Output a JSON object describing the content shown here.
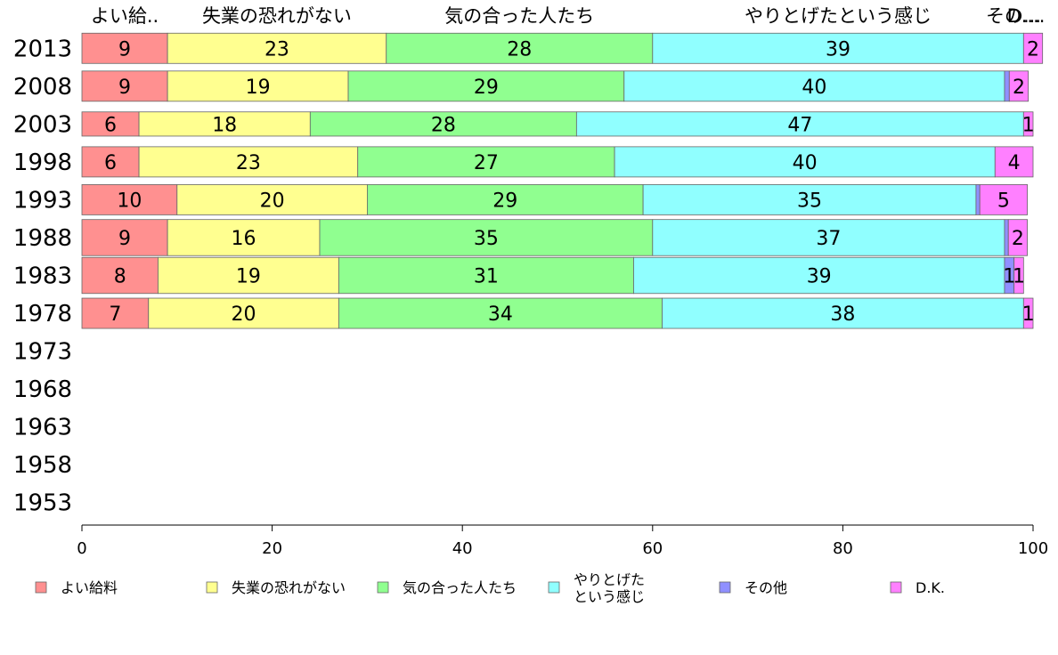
{
  "chart_data": {
    "type": "bar",
    "orientation": "horizontal",
    "stacked": true,
    "categories": [
      "2013",
      "2008",
      "2003",
      "1998",
      "1993",
      "1988",
      "1983",
      "1978",
      "1973",
      "1968",
      "1963",
      "1958",
      "1953"
    ],
    "series": [
      {
        "name": "よい給料",
        "header": "よい給..",
        "color": "#ff9090",
        "values": [
          9,
          9,
          6,
          6,
          10,
          9,
          8,
          7,
          null,
          null,
          null,
          null,
          null
        ],
        "labels": [
          "9",
          "9",
          "6",
          "6",
          "10",
          "9",
          "8",
          "7",
          "",
          "",
          "",
          "",
          ""
        ]
      },
      {
        "name": "失業の恐れがない",
        "header": "失業の恐れがない",
        "color": "#ffff90",
        "values": [
          23,
          19,
          18,
          23,
          20,
          16,
          19,
          20,
          null,
          null,
          null,
          null,
          null
        ],
        "labels": [
          "23",
          "19",
          "18",
          "23",
          "20",
          "16",
          "19",
          "20",
          "",
          "",
          "",
          "",
          ""
        ]
      },
      {
        "name": "気の合った人たち",
        "header": "気の合った人たち",
        "color": "#90ff90",
        "values": [
          28,
          29,
          28,
          27,
          29,
          35,
          31,
          34,
          null,
          null,
          null,
          null,
          null
        ],
        "labels": [
          "28",
          "29",
          "28",
          "27",
          "29",
          "35",
          "31",
          "34",
          "",
          "",
          "",
          "",
          ""
        ]
      },
      {
        "name": "やりとげたという感じ",
        "header": "やりとげたという感じ",
        "legend_lines": [
          "やりとげた",
          "という感じ"
        ],
        "color": "#90ffff",
        "values": [
          39,
          40,
          47,
          40,
          35,
          37,
          39,
          38,
          null,
          null,
          null,
          null,
          null
        ],
        "labels": [
          "39",
          "40",
          "47",
          "40",
          "35",
          "37",
          "39",
          "38",
          "",
          "",
          "",
          "",
          ""
        ]
      },
      {
        "name": "その他",
        "header": "その...",
        "color": "#9090ff",
        "values": [
          0,
          0.5,
          0,
          0,
          0.4,
          0.4,
          1,
          0,
          null,
          null,
          null,
          null,
          null
        ],
        "labels": [
          "",
          "",
          "",
          "",
          "",
          "",
          "1",
          "",
          "",
          "",
          "",
          "",
          ""
        ]
      },
      {
        "name": "D.K.",
        "header": "D....",
        "color": "#ff80ff",
        "values": [
          2,
          2,
          1,
          4,
          5,
          2,
          1,
          1,
          null,
          null,
          null,
          null,
          null
        ],
        "labels": [
          "2",
          "2",
          "1",
          "4",
          "5",
          "2",
          "1",
          "1",
          "",
          "",
          "",
          "",
          ""
        ]
      }
    ],
    "xlim": [
      0,
      100
    ],
    "xticks": [
      "0",
      "20",
      "40",
      "60",
      "80",
      "100"
    ],
    "bar_thickness_weight": [
      1,
      1,
      0.8,
      1,
      1,
      1.3,
      1.45,
      1,
      0,
      0,
      0,
      0,
      0
    ],
    "legend_position": "bottom",
    "grid": false,
    "title": "",
    "xlabel": "",
    "ylabel": ""
  }
}
